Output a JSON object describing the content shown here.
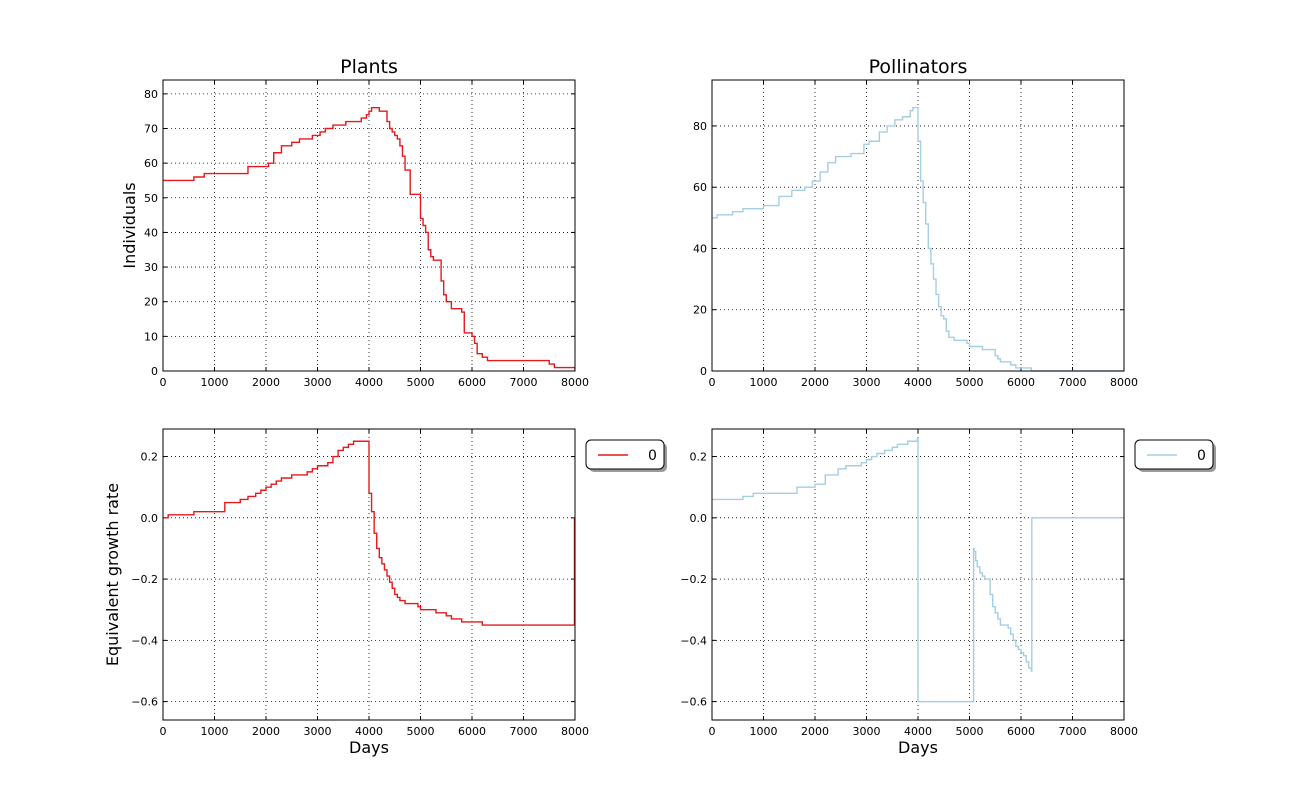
{
  "figure": {
    "background": "#ffffff"
  },
  "chart_data": [
    {
      "id": "plants-individuals",
      "type": "line",
      "title": "Plants",
      "xlabel": "",
      "ylabel": "Individuals",
      "xlim": [
        0,
        8000
      ],
      "ylim": [
        0,
        84
      ],
      "xticks": [
        0,
        1000,
        2000,
        3000,
        4000,
        5000,
        6000,
        7000,
        8000
      ],
      "yticks": [
        0,
        10,
        20,
        30,
        40,
        50,
        60,
        70,
        80
      ],
      "grid": true,
      "legend": null,
      "series": [
        {
          "color": "#e41a1c",
          "step": true,
          "x": [
            0,
            600,
            800,
            1650,
            2050,
            2150,
            2300,
            2500,
            2650,
            2900,
            3050,
            3150,
            3300,
            3400,
            3550,
            3700,
            3850,
            3950,
            4000,
            4050,
            4100,
            4200,
            4350,
            4400,
            4450,
            4500,
            4550,
            4600,
            4650,
            4700,
            4800,
            4850,
            4900,
            5000,
            5050,
            5100,
            5150,
            5200,
            5250,
            5300,
            5400,
            5450,
            5500,
            5600,
            5800,
            5850,
            5950,
            6000,
            6050,
            6100,
            6200,
            6300,
            6500,
            7500,
            7600,
            7700,
            8000
          ],
          "y": [
            55,
            56,
            57,
            59,
            60,
            63,
            65,
            66,
            67,
            68,
            69,
            70,
            71,
            71,
            72,
            72,
            73,
            74,
            75,
            76,
            76,
            75,
            72,
            70,
            69,
            68,
            67,
            65,
            62,
            58,
            51,
            51,
            51,
            44,
            42,
            40,
            35,
            33,
            32,
            32,
            26,
            22,
            20,
            18,
            17,
            11,
            11,
            10,
            8,
            5,
            4,
            3,
            3,
            2,
            1,
            1,
            0
          ]
        }
      ]
    },
    {
      "id": "pollinators-individuals",
      "type": "line",
      "title": "Pollinators",
      "xlabel": "",
      "ylabel": "",
      "xlim": [
        0,
        8000
      ],
      "ylim": [
        0,
        95
      ],
      "xticks": [
        0,
        1000,
        2000,
        3000,
        4000,
        5000,
        6000,
        7000,
        8000
      ],
      "yticks": [
        0,
        20,
        40,
        60,
        80
      ],
      "grid": true,
      "legend": null,
      "series": [
        {
          "color": "#a6cee3",
          "step": true,
          "x": [
            0,
            100,
            400,
            600,
            1000,
            1300,
            1550,
            1800,
            1950,
            2100,
            2250,
            2400,
            2550,
            2700,
            2950,
            3050,
            3250,
            3400,
            3550,
            3700,
            3850,
            3900,
            3950,
            4000,
            4050,
            4100,
            4150,
            4200,
            4250,
            4300,
            4350,
            4400,
            4450,
            4500,
            4550,
            4600,
            4700,
            4950,
            5000,
            5250,
            5500,
            5550,
            5600,
            5750,
            5800,
            5900,
            6000,
            6200,
            8000
          ],
          "y": [
            50,
            51,
            52,
            53,
            54,
            57,
            59,
            60,
            62,
            65,
            68,
            70,
            70,
            71,
            74,
            75,
            78,
            80,
            82,
            83,
            85,
            86,
            86,
            75,
            62,
            55,
            48,
            40,
            35,
            30,
            25,
            21,
            18,
            17,
            13,
            11,
            10,
            9,
            8,
            7,
            5,
            4,
            3,
            3,
            2,
            1,
            1,
            0,
            0
          ]
        }
      ]
    },
    {
      "id": "plants-growth",
      "type": "line",
      "title": "",
      "xlabel": "Days",
      "ylabel": "Equivalent growth rate",
      "xlim": [
        0,
        8000
      ],
      "ylim": [
        -0.66,
        0.29
      ],
      "xticks": [
        0,
        1000,
        2000,
        3000,
        4000,
        5000,
        6000,
        7000,
        8000
      ],
      "yticks": [
        -0.6,
        -0.4,
        -0.2,
        0.0,
        0.2
      ],
      "ytick_labels": [
        "−0.6",
        "−0.4",
        "−0.2",
        "0.0",
        "0.2"
      ],
      "grid": true,
      "legend": {
        "placement": "outside-right-top",
        "entries": [
          {
            "label": "0",
            "color": "#e41a1c"
          }
        ]
      },
      "series": [
        {
          "name": "0",
          "color": "#e41a1c",
          "step": true,
          "x": [
            0,
            100,
            600,
            1200,
            1500,
            1650,
            1800,
            1900,
            2000,
            2100,
            2200,
            2300,
            2400,
            2500,
            2600,
            2800,
            2900,
            3000,
            3200,
            3300,
            3400,
            3500,
            3600,
            3700,
            3800,
            3900,
            4000,
            4050,
            4100,
            4150,
            4200,
            4250,
            4300,
            4350,
            4400,
            4450,
            4500,
            4550,
            4600,
            4650,
            4700,
            4800,
            4950,
            5000,
            5300,
            5500,
            5600,
            5800,
            6000,
            6200,
            7950,
            7990,
            8000
          ],
          "y": [
            0.0,
            0.01,
            0.02,
            0.05,
            0.06,
            0.07,
            0.08,
            0.09,
            0.1,
            0.11,
            0.12,
            0.13,
            0.13,
            0.14,
            0.14,
            0.15,
            0.16,
            0.17,
            0.18,
            0.2,
            0.22,
            0.23,
            0.24,
            0.25,
            0.25,
            0.25,
            0.08,
            0.02,
            -0.05,
            -0.1,
            -0.13,
            -0.15,
            -0.17,
            -0.19,
            -0.21,
            -0.23,
            -0.25,
            -0.26,
            -0.27,
            -0.27,
            -0.28,
            -0.28,
            -0.29,
            -0.3,
            -0.31,
            -0.32,
            -0.33,
            -0.34,
            -0.34,
            -0.35,
            -0.35,
            0.0,
            0.0
          ]
        }
      ]
    },
    {
      "id": "pollinators-growth",
      "type": "line",
      "title": "",
      "xlabel": "Days",
      "ylabel": "",
      "xlim": [
        0,
        8000
      ],
      "ylim": [
        -0.66,
        0.29
      ],
      "xticks": [
        0,
        1000,
        2000,
        3000,
        4000,
        5000,
        6000,
        7000,
        8000
      ],
      "yticks": [
        -0.6,
        -0.4,
        -0.2,
        0.0,
        0.2
      ],
      "ytick_labels": [
        "−0.6",
        "−0.4",
        "−0.2",
        "0.0",
        "0.2"
      ],
      "grid": true,
      "legend": {
        "placement": "outside-right-top",
        "entries": [
          {
            "label": "0",
            "color": "#a6cee3"
          }
        ]
      },
      "series": [
        {
          "name": "0",
          "color": "#a6cee3",
          "step": true,
          "x": [
            0,
            600,
            800,
            1650,
            2000,
            2200,
            2450,
            2600,
            2900,
            3000,
            3100,
            3200,
            3350,
            3500,
            3600,
            3800,
            3990,
            4000,
            5080,
            5090,
            5120,
            5150,
            5200,
            5250,
            5300,
            5400,
            5450,
            5500,
            5550,
            5600,
            5750,
            5800,
            5850,
            5900,
            5950,
            6000,
            6050,
            6100,
            6150,
            6200,
            6210,
            8000
          ],
          "y": [
            0.06,
            0.07,
            0.08,
            0.1,
            0.11,
            0.14,
            0.16,
            0.17,
            0.18,
            0.19,
            0.2,
            0.21,
            0.22,
            0.23,
            0.24,
            0.25,
            0.26,
            -0.6,
            -0.1,
            -0.11,
            -0.14,
            -0.16,
            -0.18,
            -0.19,
            -0.2,
            -0.25,
            -0.29,
            -0.31,
            -0.33,
            -0.35,
            -0.36,
            -0.38,
            -0.4,
            -0.42,
            -0.43,
            -0.44,
            -0.45,
            -0.47,
            -0.49,
            -0.5,
            0.0,
            0.0
          ]
        }
      ]
    }
  ]
}
